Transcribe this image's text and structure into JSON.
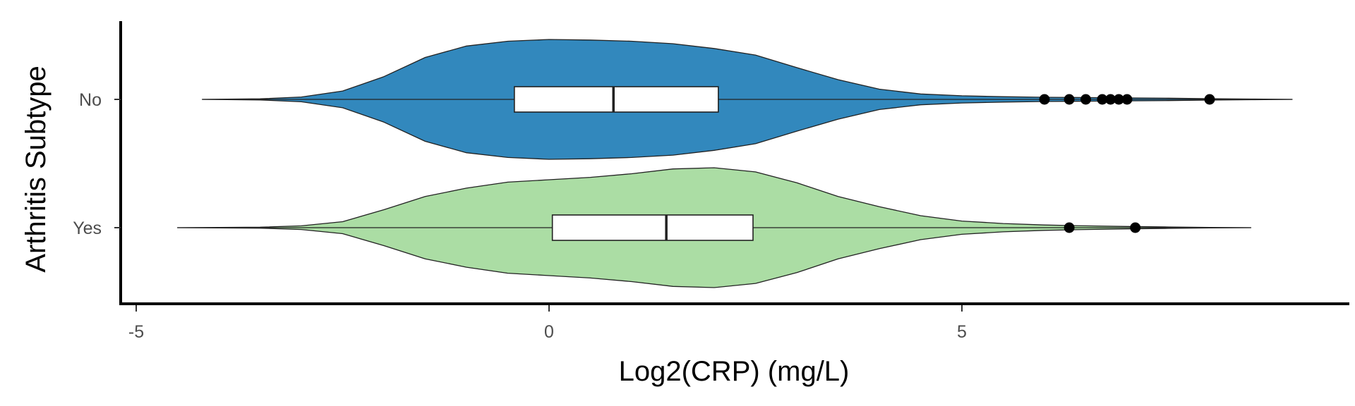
{
  "chart_data": {
    "type": "violin",
    "title": "",
    "xlabel": "Log2(CRP) (mg/L)",
    "ylabel": "Arthritis Subtype",
    "xlim": [
      -5.2,
      9.8
    ],
    "x_ticks": [
      -5,
      0,
      5
    ],
    "x_tick_labels": [
      "-5",
      "0",
      "5"
    ],
    "categories": [
      "No",
      "Yes"
    ],
    "grid": false,
    "legend": "none",
    "series": [
      {
        "category": "No",
        "color": "#3288BD",
        "violin": {
          "x": [
            -4.2,
            -3.5,
            -3.0,
            -2.5,
            -2.0,
            -1.5,
            -1.0,
            -0.5,
            0.0,
            0.5,
            1.0,
            1.5,
            2.0,
            2.5,
            3.0,
            3.5,
            4.0,
            4.5,
            5.0,
            5.5,
            6.0,
            6.5,
            7.0,
            7.5,
            8.0,
            8.5,
            9.0
          ],
          "width": [
            0.0,
            0.01,
            0.04,
            0.14,
            0.38,
            0.7,
            0.89,
            0.97,
            1.0,
            0.99,
            0.97,
            0.93,
            0.85,
            0.74,
            0.53,
            0.33,
            0.17,
            0.09,
            0.06,
            0.045,
            0.035,
            0.03,
            0.025,
            0.02,
            0.012,
            0.006,
            0.0
          ]
        },
        "box": {
          "q1": -0.42,
          "median": 0.78,
          "q3": 2.05,
          "whisker_low": -4.2,
          "whisker_high": 9.0
        },
        "outliers": [
          6.0,
          6.3,
          6.5,
          6.7,
          6.8,
          6.9,
          7.0,
          8.0
        ]
      },
      {
        "category": "Yes",
        "color": "#ABDDA4",
        "violin": {
          "x": [
            -4.5,
            -4.0,
            -3.5,
            -3.0,
            -2.5,
            -2.0,
            -1.5,
            -1.0,
            -0.5,
            0.0,
            0.5,
            1.0,
            1.5,
            2.0,
            2.5,
            3.0,
            3.5,
            4.0,
            4.5,
            5.0,
            5.5,
            6.0,
            6.5,
            7.0,
            7.5,
            8.0,
            8.5
          ],
          "width": [
            0.0,
            0.004,
            0.008,
            0.03,
            0.1,
            0.3,
            0.52,
            0.66,
            0.76,
            0.8,
            0.84,
            0.9,
            0.98,
            1.0,
            0.93,
            0.75,
            0.52,
            0.35,
            0.2,
            0.11,
            0.07,
            0.045,
            0.03,
            0.02,
            0.012,
            0.005,
            0.0
          ]
        },
        "box": {
          "q1": 0.04,
          "median": 1.42,
          "q3": 2.47,
          "whisker_low": -4.5,
          "whisker_high": 8.5
        },
        "outliers": [
          6.3,
          7.1
        ]
      }
    ]
  }
}
